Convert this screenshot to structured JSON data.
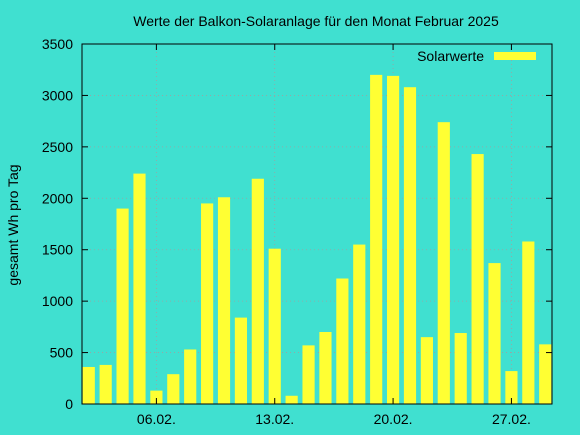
{
  "chart_data": {
    "type": "bar",
    "title": "Werte der Balkon-Solaranlage für den Monat Februar 2025",
    "ylabel": "gesamt Wh pro Tag",
    "xlabel": "",
    "ylim": [
      0,
      3500
    ],
    "yticks": [
      0,
      500,
      1000,
      1500,
      2000,
      2500,
      3000,
      3500
    ],
    "xlim": [
      1.6,
      29.4
    ],
    "xticks": [
      {
        "day": 6,
        "label": "06.02."
      },
      {
        "day": 13,
        "label": "13.02."
      },
      {
        "day": 20,
        "label": "20.02."
      },
      {
        "day": 27,
        "label": "27.02."
      }
    ],
    "grid": true,
    "legend": {
      "position": "top-right"
    },
    "series": [
      {
        "name": "Solarwerte",
        "color": "#ffff33",
        "x": [
          2,
          3,
          4,
          5,
          6,
          7,
          8,
          9,
          10,
          11,
          12,
          13,
          14,
          15,
          16,
          17,
          18,
          19,
          20,
          21,
          22,
          23,
          24,
          25,
          26,
          27,
          28,
          29
        ],
        "values": [
          360,
          380,
          1900,
          2240,
          130,
          290,
          530,
          1950,
          2010,
          840,
          2190,
          1510,
          80,
          570,
          700,
          1220,
          1550,
          3200,
          3190,
          3080,
          650,
          2740,
          690,
          2430,
          1370,
          320,
          1580,
          580
        ]
      }
    ]
  }
}
